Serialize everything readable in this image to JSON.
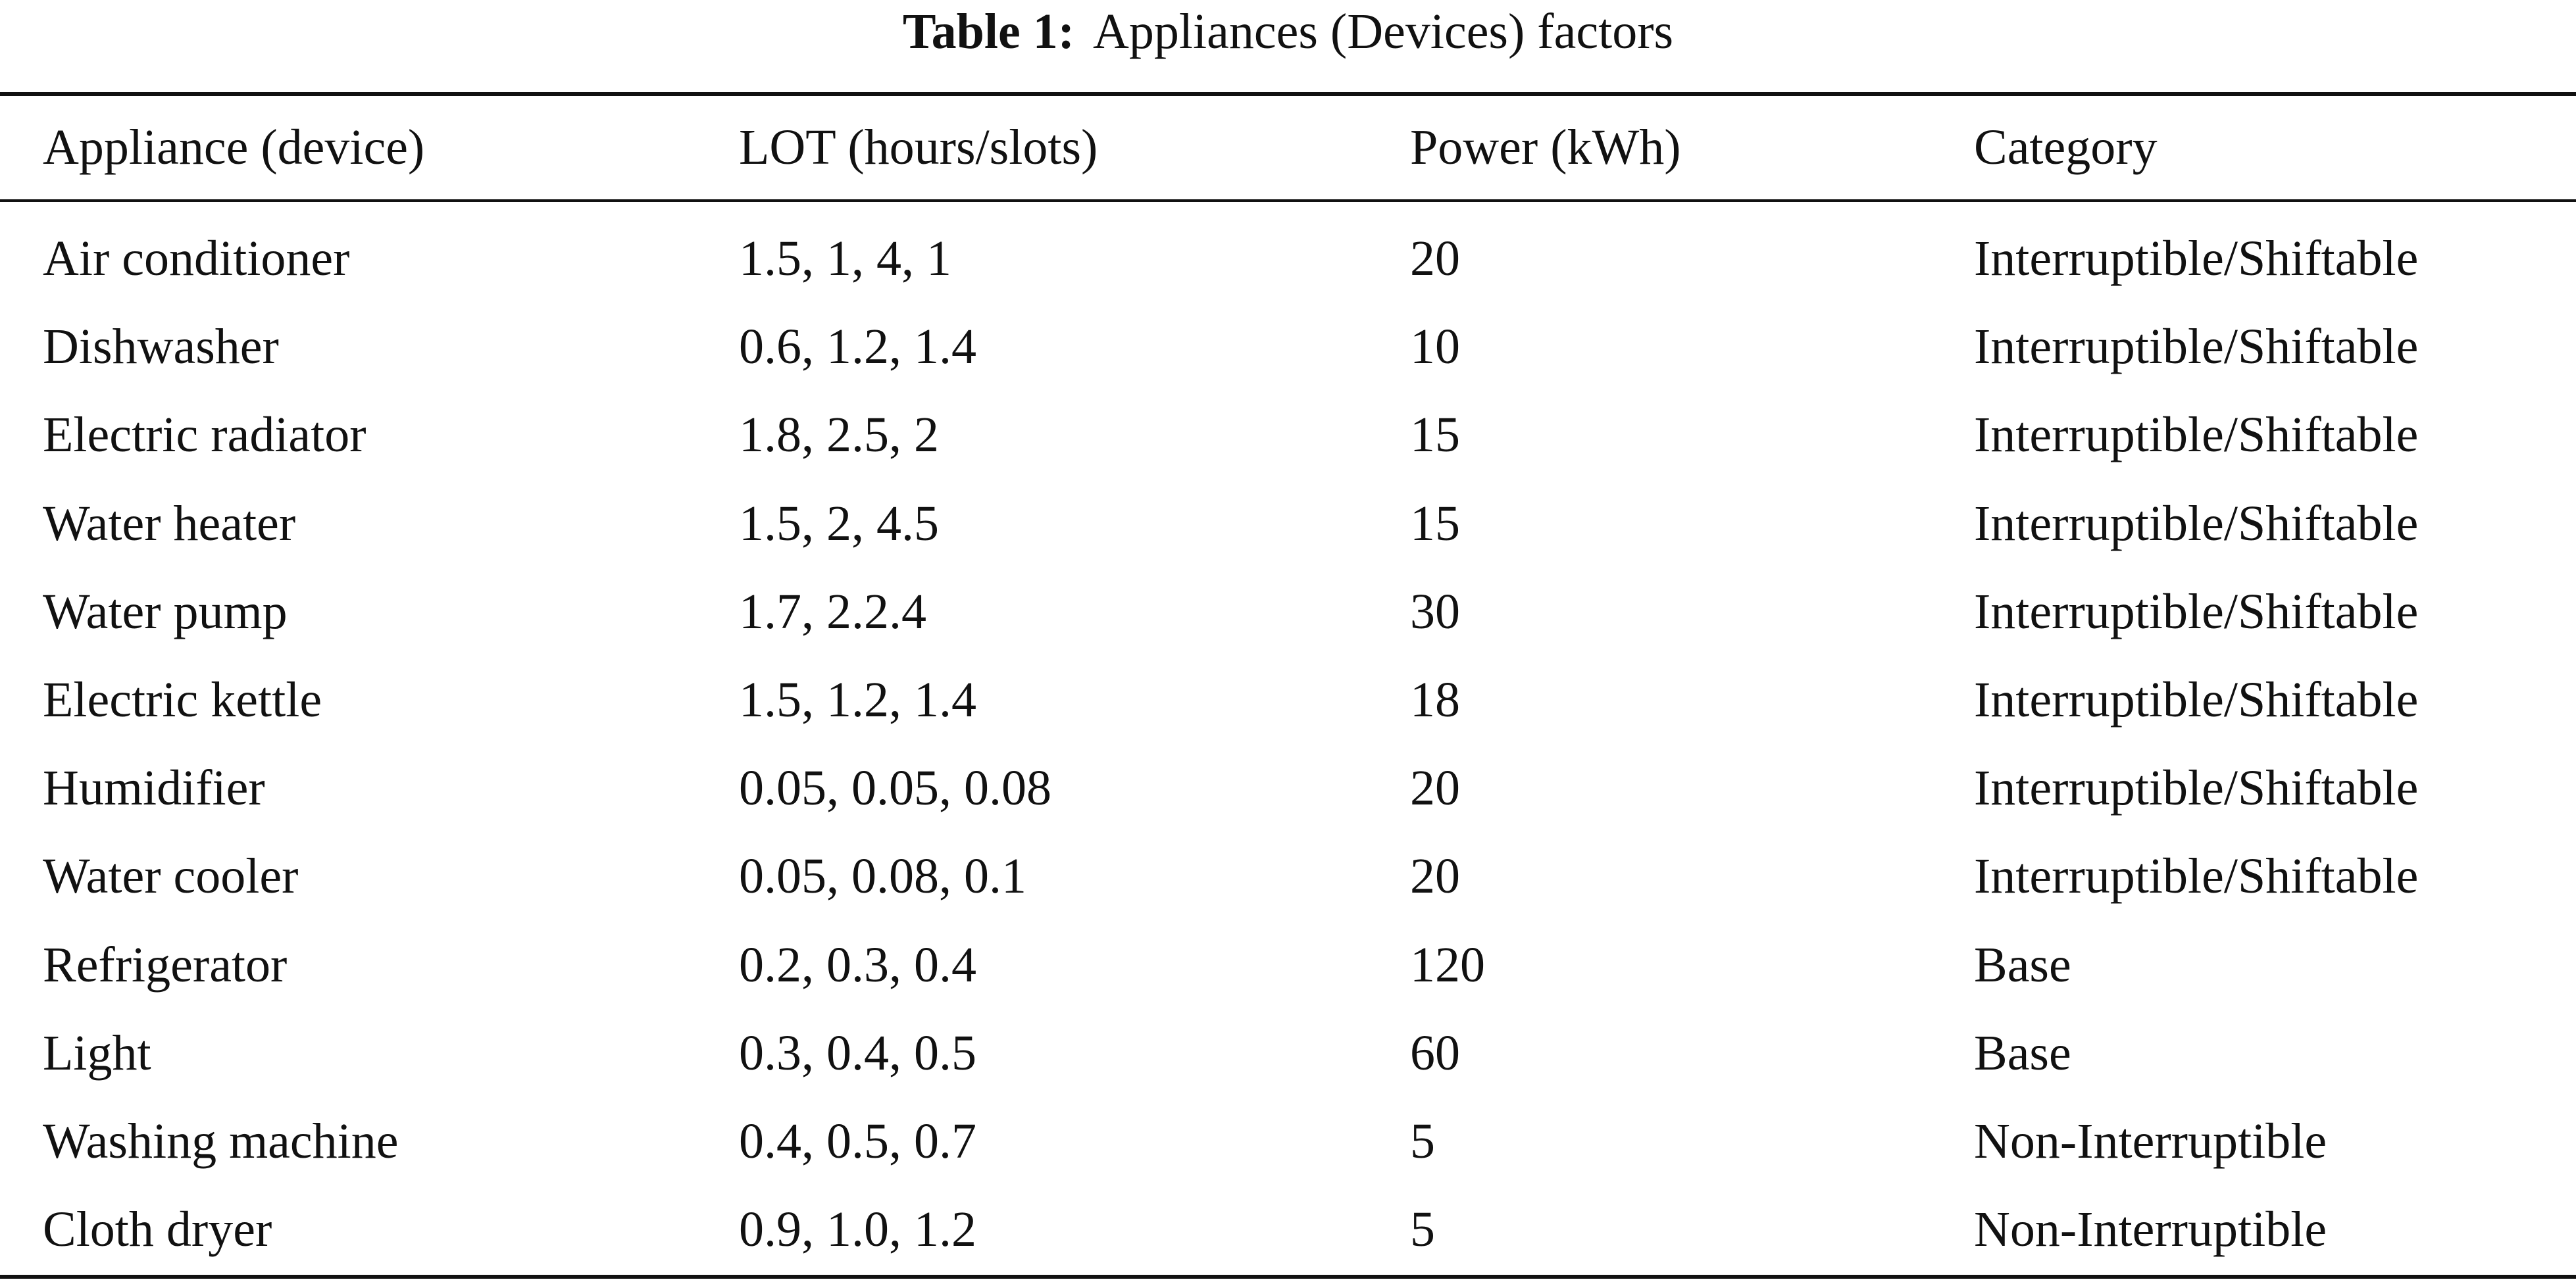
{
  "caption": {
    "label": "Table 1:",
    "text": "Appliances (Devices) factors"
  },
  "table": {
    "headers": [
      "Appliance (device)",
      "LOT (hours/slots)",
      "Power (kWh)",
      "Category"
    ],
    "rows": [
      [
        "Air conditioner",
        "1.5, 1, 4, 1",
        "20",
        "Interruptible/Shiftable"
      ],
      [
        "Dishwasher",
        "0.6, 1.2, 1.4",
        "10",
        "Interruptible/Shiftable"
      ],
      [
        "Electric radiator",
        "1.8, 2.5, 2",
        "15",
        "Interruptible/Shiftable"
      ],
      [
        "Water heater",
        "1.5, 2, 4.5",
        "15",
        "Interruptible/Shiftable"
      ],
      [
        "Water pump",
        "1.7, 2.2.4",
        "30",
        "Interruptible/Shiftable"
      ],
      [
        "Electric kettle",
        "1.5, 1.2, 1.4",
        "18",
        "Interruptible/Shiftable"
      ],
      [
        "Humidifier",
        "0.05, 0.05, 0.08",
        "20",
        "Interruptible/Shiftable"
      ],
      [
        "Water cooler",
        "0.05, 0.08, 0.1",
        "20",
        "Interruptible/Shiftable"
      ],
      [
        "Refrigerator",
        "0.2, 0.3, 0.4",
        "120",
        "Base"
      ],
      [
        "Light",
        "0.3, 0.4, 0.5",
        "60",
        "Base"
      ],
      [
        "Washing machine",
        "0.4, 0.5, 0.7",
        "5",
        "Non-Interruptible"
      ],
      [
        "Cloth dryer",
        "0.9, 1.0, 1.2",
        "5",
        "Non-Interruptible"
      ]
    ]
  }
}
